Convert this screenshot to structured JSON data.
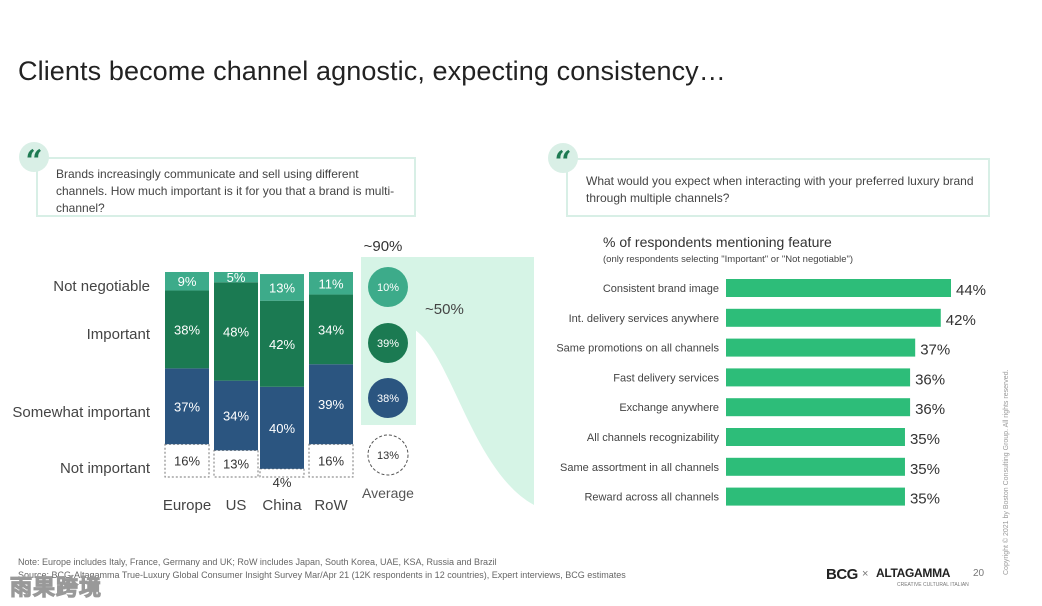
{
  "title": "Clients become channel agnostic, expecting consistency…",
  "left_question": "Brands increasingly communicate and sell using different channels. How much important is it for you that a brand is multi-channel?",
  "right_question": "What would you expect when interacting with your preferred luxury brand through multiple channels?",
  "quote_glyph": "“",
  "notes": {
    "note": "Note: Europe includes Italy, France, Germany and UK; RoW includes Japan, South Korea, UAE, KSA, Russia and Brazil",
    "source": "Source: BCG-Altagamma True-Luxury Global Consumer Insight Survey Mar/Apr 21 (12K respondents in 12 countries), Expert interviews, BCG estimates"
  },
  "page_number": "20",
  "copyright": "Copyright © 2021 by Boston Consulting Group. All rights reserved.",
  "logos": {
    "bcg": "BCG",
    "times": "×",
    "altagamma": "ALTAGAMMA",
    "altagamma_sub": "CREATIVE CULTURAL ITALIAN"
  },
  "watermark": "雨果跨境",
  "colors": {
    "not_negotiable": "#3dab8a",
    "important": "#1b7a52",
    "somewhat": "#2b5580",
    "not_important": "#ffffff",
    "green_bar": "#2dbd79",
    "funnel": "#d6f4e6"
  },
  "chart_data": [
    {
      "type": "bar",
      "subtype": "stacked-100",
      "categories": [
        "Europe",
        "US",
        "China",
        "RoW"
      ],
      "series": [
        {
          "name": "Not important",
          "values": [
            16,
            13,
            4,
            16
          ]
        },
        {
          "name": "Somewhat important",
          "values": [
            37,
            34,
            40,
            39
          ]
        },
        {
          "name": "Important",
          "values": [
            38,
            48,
            42,
            34
          ]
        },
        {
          "name": "Not negotiable",
          "values": [
            9,
            5,
            13,
            11
          ]
        }
      ],
      "value_labels": [
        [
          "16%",
          "13%",
          "4%",
          "16%"
        ],
        [
          "37%",
          "34%",
          "40%",
          "39%"
        ],
        [
          "38%",
          "48%",
          "42%",
          "34%"
        ],
        [
          "9%",
          "5%",
          "13%",
          "11%"
        ]
      ],
      "ylim": [
        0,
        100
      ],
      "average": {
        "label": "Average",
        "values": [
          13,
          38,
          39,
          10
        ],
        "value_labels": [
          "13%",
          "38%",
          "39%",
          "10%"
        ],
        "total_label": "~90%"
      },
      "funnel_label": "~50%"
    },
    {
      "type": "bar",
      "orientation": "horizontal",
      "title": "% of respondents mentioning feature",
      "subtitle": "(only respondents selecting \"Important\" or \"Not negotiable\")",
      "categories": [
        "Consistent brand image",
        "Int. delivery services anywhere",
        "Same promotions on all channels",
        "Fast delivery services",
        "Exchange anywhere",
        "All channels recognizability",
        "Same assortment in all channels",
        "Reward across all channels"
      ],
      "values": [
        44,
        42,
        37,
        36,
        36,
        35,
        35,
        35
      ],
      "value_labels": [
        "44%",
        "42%",
        "37%",
        "36%",
        "36%",
        "35%",
        "35%",
        "35%"
      ],
      "xlim": [
        0,
        44
      ]
    }
  ]
}
